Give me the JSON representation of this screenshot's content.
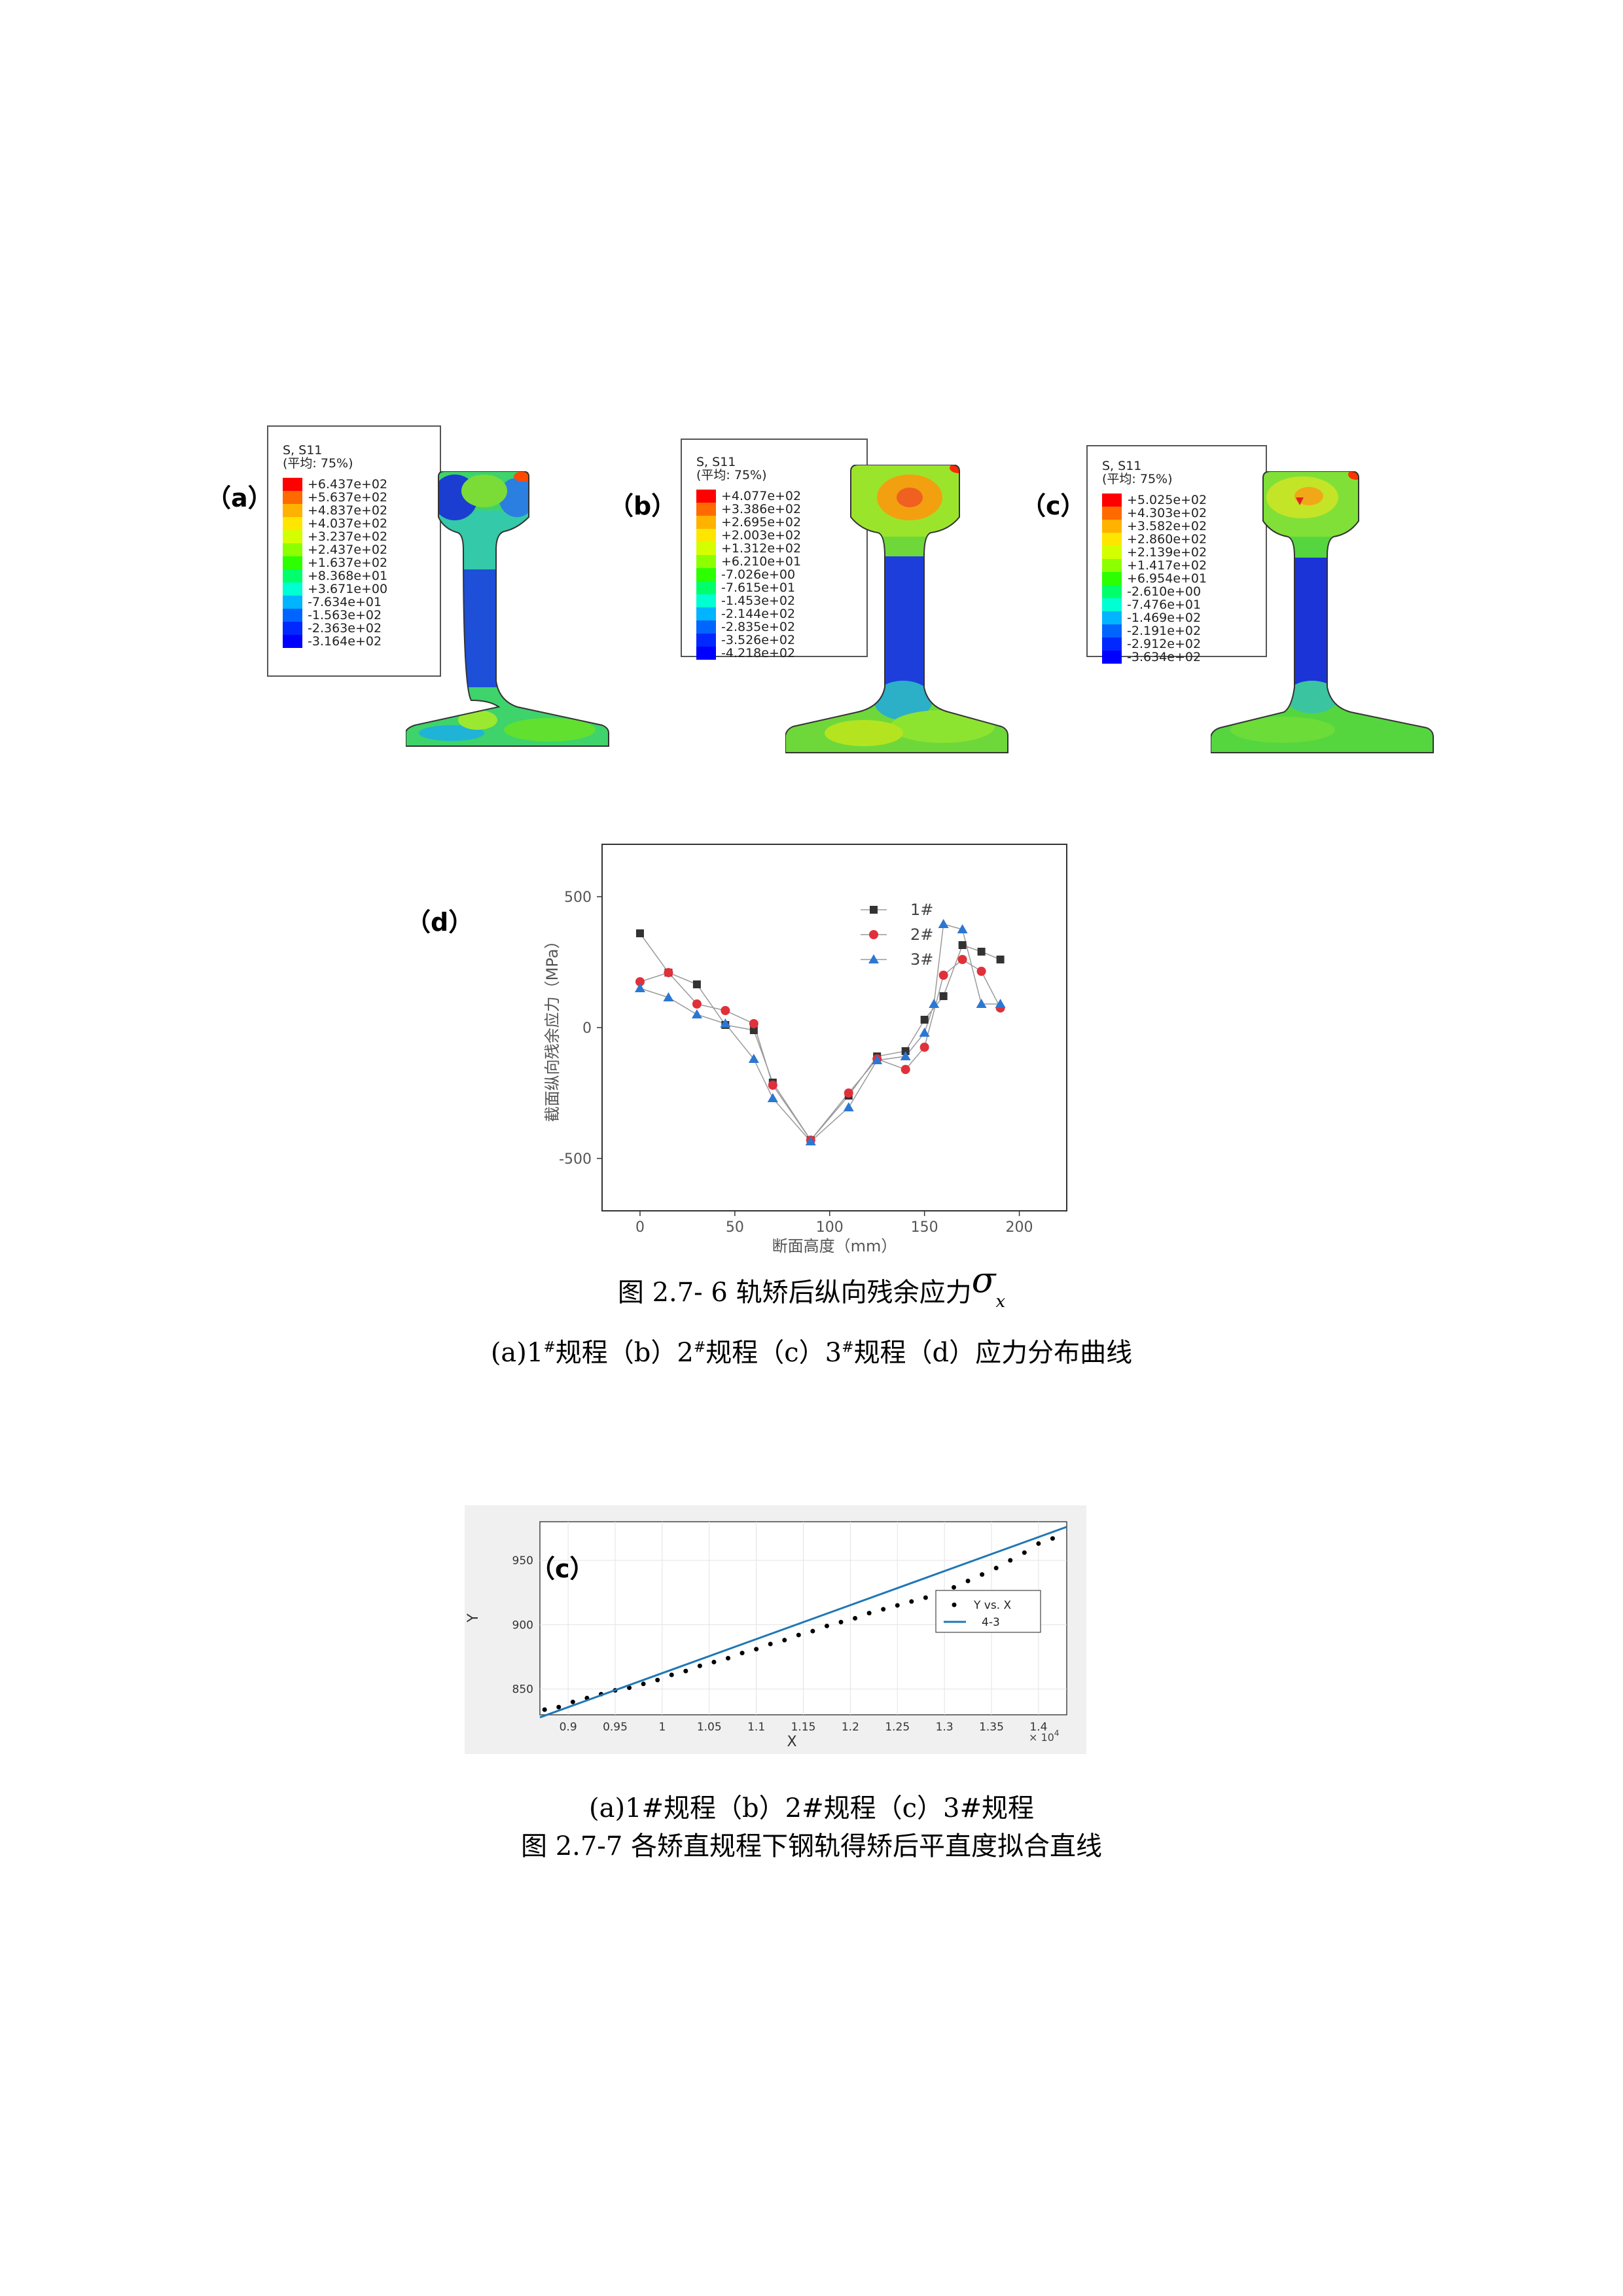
{
  "panels": [
    {
      "letter": "（a）",
      "legend_header": [
        "S, S11",
        "(平均: 75%)"
      ],
      "legend_values": [
        "+6.437e+02",
        "+5.637e+02",
        "+4.837e+02",
        "+4.037e+02",
        "+3.237e+02",
        "+2.437e+02",
        "+1.637e+02",
        "+8.368e+01",
        "+3.671e+00",
        "-7.634e+01",
        "-1.563e+02",
        "-2.363e+02",
        "-3.164e+02"
      ]
    },
    {
      "letter": "（b）",
      "legend_header": [
        "S, S11",
        "(平均: 75%)"
      ],
      "legend_values": [
        "+4.077e+02",
        "+3.386e+02",
        "+2.695e+02",
        "+2.003e+02",
        "+1.312e+02",
        "+6.210e+01",
        "-7.026e+00",
        "-7.615e+01",
        "-1.453e+02",
        "-2.144e+02",
        "-2.835e+02",
        "-3.526e+02",
        "-4.218e+02"
      ]
    },
    {
      "letter": "（c）",
      "legend_header": [
        "S, S11",
        "(平均: 75%)"
      ],
      "legend_values": [
        "+5.025e+02",
        "+4.303e+02",
        "+3.582e+02",
        "+2.860e+02",
        "+2.139e+02",
        "+1.417e+02",
        "+6.954e+01",
        "-2.610e+00",
        "-7.476e+01",
        "-1.469e+02",
        "-2.191e+02",
        "-2.912e+02",
        "-3.634e+02"
      ]
    }
  ],
  "legend_colors": [
    "#ff0000",
    "#ff6a00",
    "#ffb200",
    "#ffe600",
    "#d4ff00",
    "#8cff00",
    "#2bff00",
    "#00ff6a",
    "#00ffd2",
    "#00b4ff",
    "#0064ff",
    "#0028ff",
    "#0000ff"
  ],
  "panel_d_letter": "（d）",
  "chart_data": {
    "type": "line",
    "xlabel": "断面高度（mm）",
    "ylabel": "截面纵向残余应力（MPa）",
    "xlim": [
      -20,
      225
    ],
    "ylim": [
      -700,
      700
    ],
    "xticks": [
      0,
      50,
      100,
      150,
      200
    ],
    "yticks": [
      -500,
      0,
      500
    ],
    "legend_position": "top-right",
    "series": [
      {
        "name": "1#",
        "marker": "square",
        "color": "#333333",
        "x": [
          0,
          15,
          30,
          45,
          60,
          70,
          90,
          110,
          125,
          140,
          150,
          160,
          170,
          180,
          190
        ],
        "y": [
          360,
          210,
          165,
          10,
          -10,
          -210,
          -430,
          -260,
          -110,
          -90,
          30,
          120,
          315,
          290,
          260
        ]
      },
      {
        "name": "2#",
        "marker": "circle",
        "color": "#e0303a",
        "x": [
          0,
          15,
          30,
          45,
          60,
          70,
          90,
          110,
          125,
          140,
          150,
          160,
          170,
          180,
          190
        ],
        "y": [
          175,
          210,
          90,
          65,
          15,
          -220,
          -430,
          -250,
          -120,
          -160,
          -75,
          200,
          260,
          215,
          75
        ]
      },
      {
        "name": "3#",
        "marker": "triangle",
        "color": "#2b78d2",
        "x": [
          0,
          15,
          30,
          45,
          60,
          70,
          90,
          110,
          125,
          140,
          150,
          155,
          160,
          170,
          180,
          190
        ],
        "y": [
          150,
          115,
          50,
          15,
          -120,
          -270,
          -435,
          -305,
          -125,
          -110,
          -20,
          90,
          395,
          375,
          90,
          90
        ]
      }
    ]
  },
  "caption1_main": "图 2.7- 6 轨矫后纵向残余应力",
  "caption1_symbol": "σ",
  "caption1_sub": "x",
  "caption2_parts": [
    "(a)1",
    "#",
    "规程（b）2",
    "#",
    "规程（c）3",
    "#",
    "规程（d）应力分布曲线"
  ],
  "fit_chart": {
    "panel_letter": "（c）",
    "type": "scatter",
    "xlabel": "X",
    "ylabel": "Y",
    "x_multiplier": "× 10",
    "x_multiplier_exp": "4",
    "xlim": [
      0.87,
      1.43
    ],
    "ylim": [
      830,
      980
    ],
    "xticks": [
      0.9,
      0.95,
      1,
      1.05,
      1.1,
      1.15,
      1.2,
      1.25,
      1.3,
      1.35,
      1.4
    ],
    "xtick_labels": [
      "0.9",
      "0.95",
      "1",
      "1.05",
      "1.1",
      "1.15",
      "1.2",
      "1.25",
      "1.3",
      "1.35",
      "1.4"
    ],
    "yticks": [
      850,
      900,
      950
    ],
    "legend_position": "right",
    "points_series": "Y vs. X",
    "fit_series": "4-3",
    "fit_line": [
      [
        0.87,
        828
      ],
      [
        1.43,
        976
      ]
    ],
    "points_x": [
      0.875,
      0.89,
      0.905,
      0.92,
      0.935,
      0.95,
      0.965,
      0.98,
      0.995,
      1.01,
      1.025,
      1.04,
      1.055,
      1.07,
      1.085,
      1.1,
      1.115,
      1.13,
      1.145,
      1.16,
      1.175,
      1.19,
      1.205,
      1.22,
      1.235,
      1.25,
      1.265,
      1.28,
      1.295,
      1.31,
      1.325,
      1.34,
      1.355,
      1.37,
      1.385,
      1.4,
      1.415
    ],
    "points_y": [
      834,
      836,
      840,
      843,
      846,
      849,
      851,
      854,
      857,
      861,
      864,
      868,
      871,
      874,
      878,
      881,
      885,
      888,
      892,
      895,
      899,
      902,
      905,
      909,
      912,
      915,
      918,
      921,
      925,
      929,
      934,
      939,
      944,
      950,
      956,
      963,
      967
    ]
  },
  "caption3": "(a)1#规程（b）2#规程（c）3#规程",
  "caption4": "图 2.7-7 各矫直规程下钢轨得矫后平直度拟合直线"
}
